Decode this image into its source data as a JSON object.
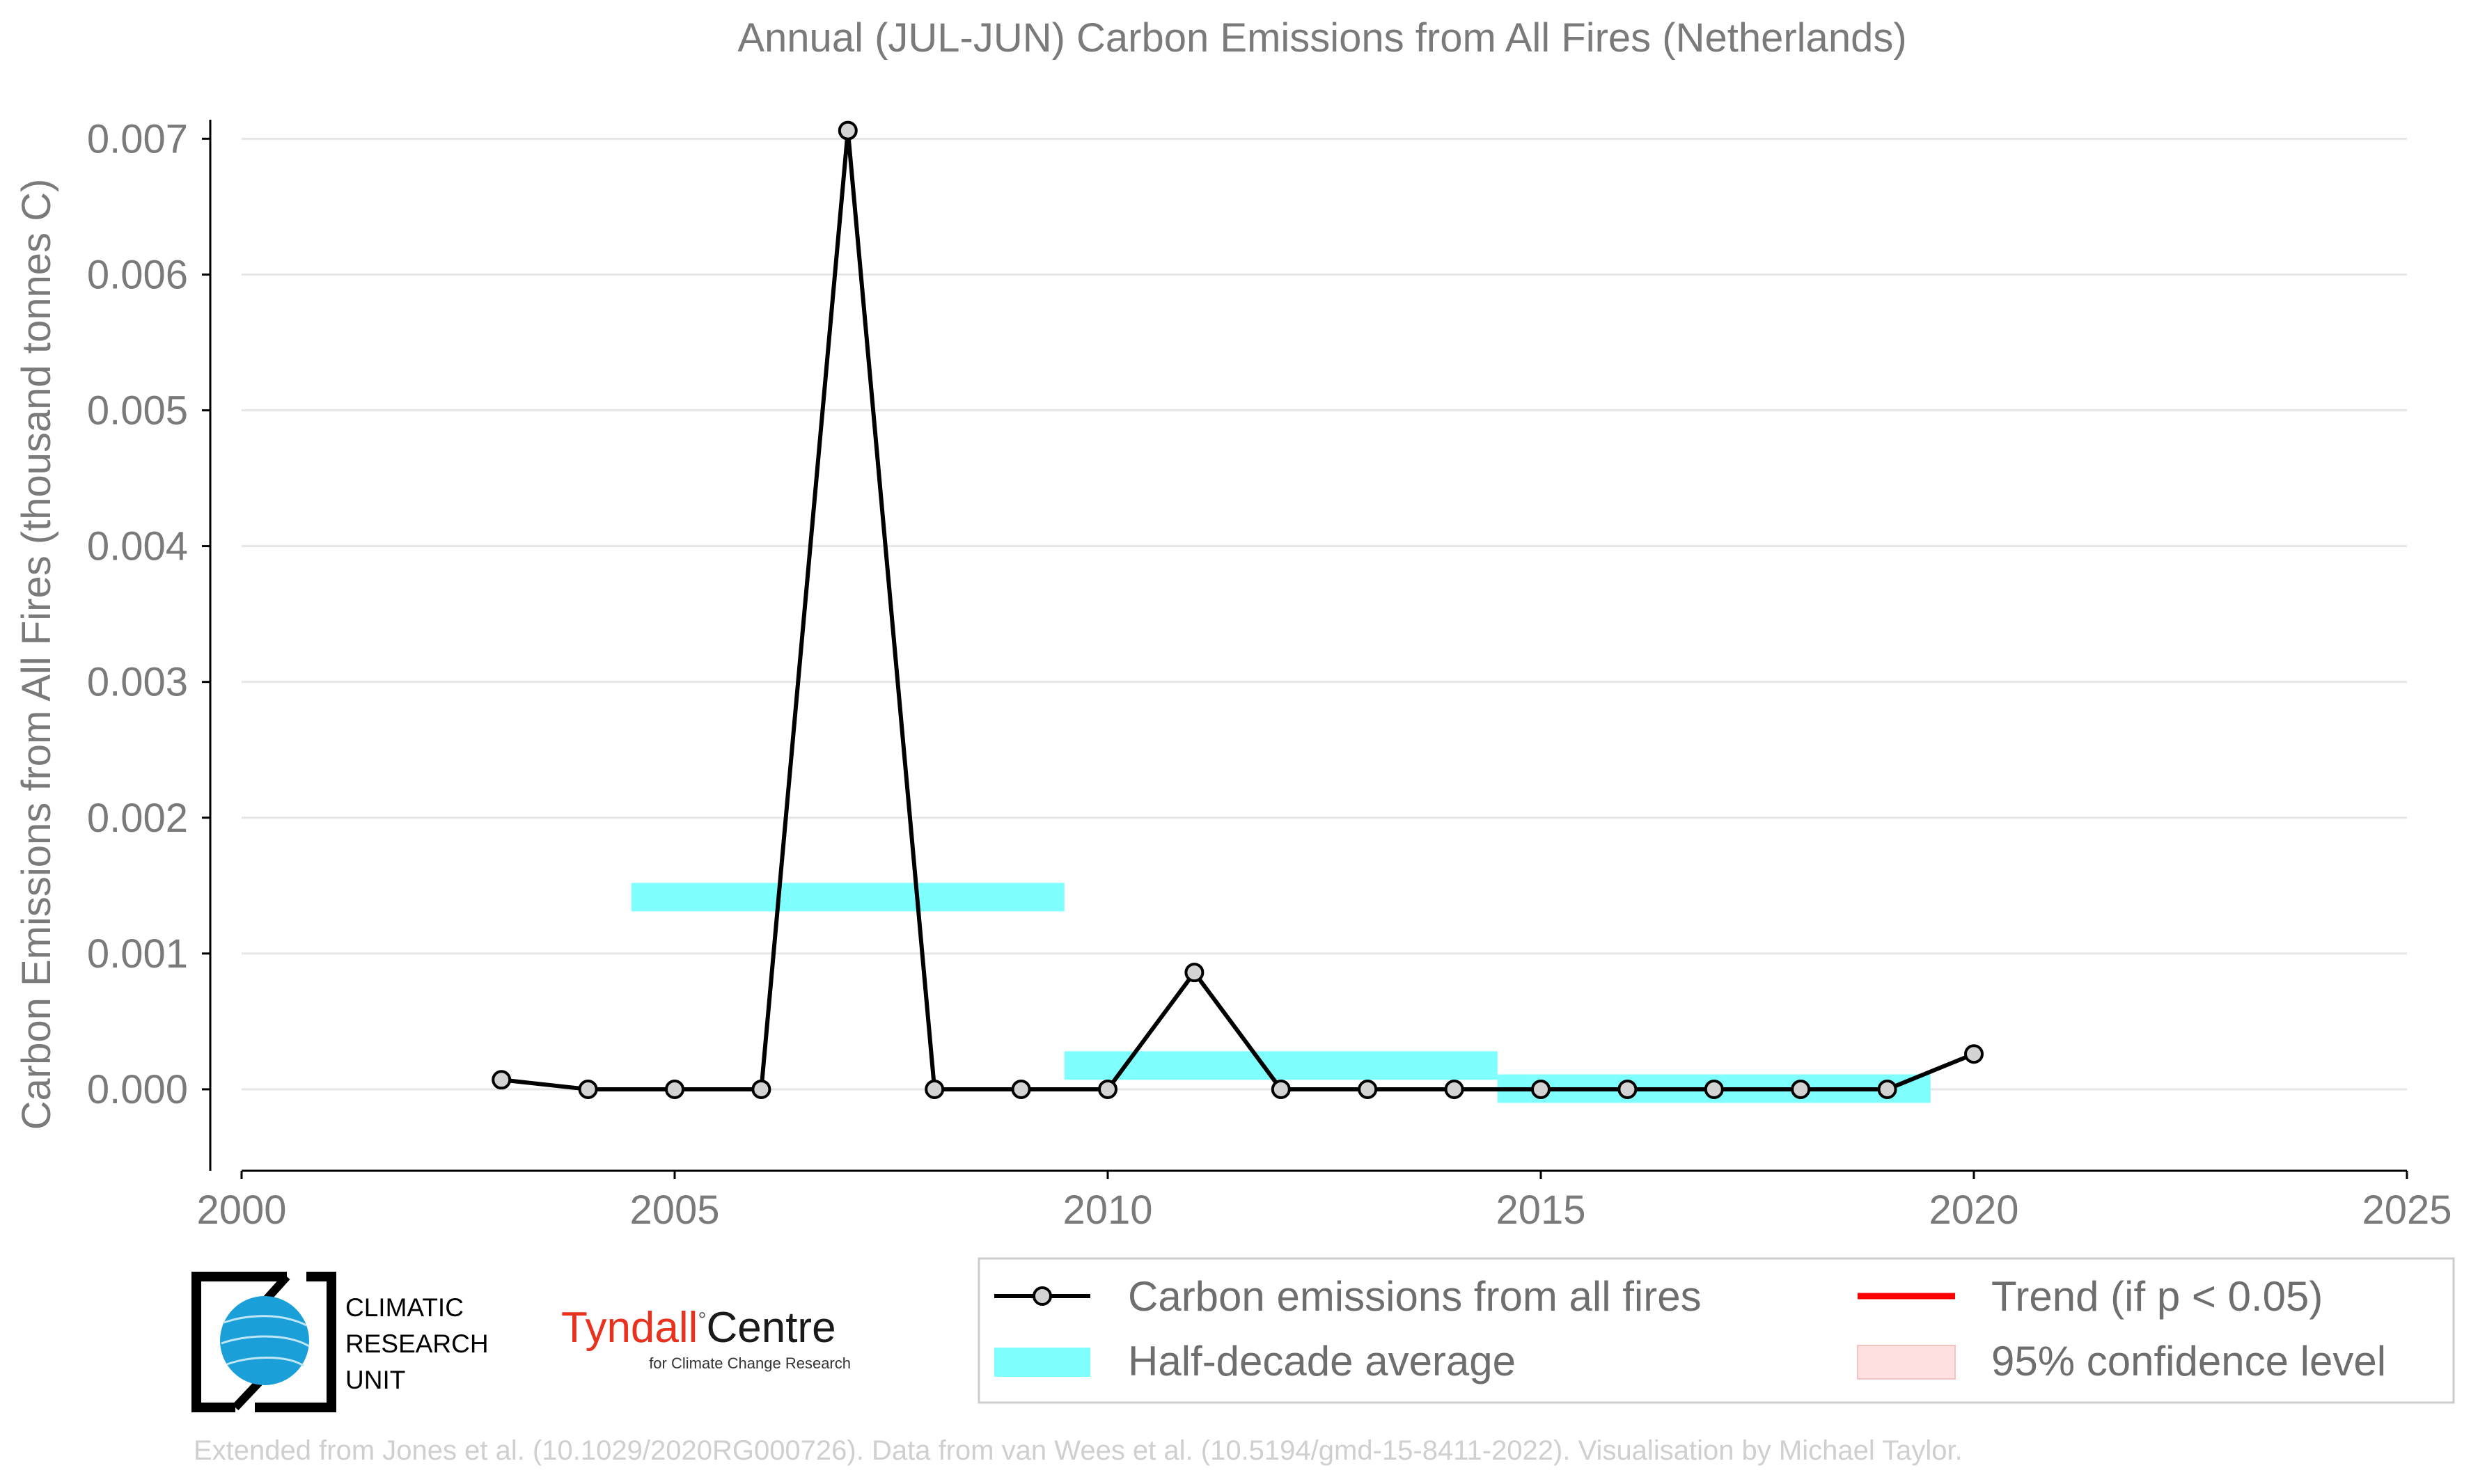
{
  "chart_data": {
    "type": "line",
    "title": "Annual (JUL-JUN) Carbon Emissions from All Fires (Netherlands)",
    "xlabel": "",
    "ylabel": "Carbon Emissions from All Fires (thousand tonnes C)",
    "xlim": [
      2000,
      2025
    ],
    "ylim": [
      -0.0006,
      0.00714
    ],
    "x_ticks": [
      2000,
      2005,
      2010,
      2015,
      2020,
      2025
    ],
    "y_ticks": [
      0.0,
      0.001,
      0.002,
      0.003,
      0.004,
      0.005,
      0.006,
      0.007
    ],
    "y_tick_labels": [
      "0.000",
      "0.001",
      "0.002",
      "0.003",
      "0.004",
      "0.005",
      "0.006",
      "0.007"
    ],
    "grid": "horizontal",
    "legend_position": "bottom-right",
    "series": [
      {
        "name": "Carbon emissions from all fires",
        "color": "#000000",
        "marker_fill": "#d3d3d3",
        "x": [
          2003,
          2004,
          2005,
          2006,
          2007,
          2008,
          2009,
          2010,
          2011,
          2012,
          2013,
          2014,
          2015,
          2016,
          2017,
          2018,
          2019,
          2020
        ],
        "y": [
          7e-05,
          0.0,
          0.0,
          0.0,
          0.00706,
          0.0,
          0.0,
          0.0,
          0.00086,
          0.0,
          0.0,
          0.0,
          0.0,
          0.0,
          0.0,
          0.0,
          0.0,
          0.00026
        ]
      }
    ],
    "half_decade_averages": {
      "name": "Half-decade average",
      "color": "#80ffff",
      "bands": [
        {
          "x_start": 2004.5,
          "x_end": 2009.5,
          "y_low": 0.00131,
          "y_high": 0.00152
        },
        {
          "x_start": 2009.5,
          "x_end": 2014.5,
          "y_low": 7e-05,
          "y_high": 0.00028
        },
        {
          "x_start": 2014.5,
          "x_end": 2019.5,
          "y_low": -0.0001,
          "y_high": 0.00011
        }
      ]
    },
    "legend": [
      {
        "label": "Carbon emissions from all fires",
        "kind": "line-marker",
        "color": "#000000"
      },
      {
        "label": "Trend (if p < 0.05)",
        "kind": "line",
        "color": "#ff0000"
      },
      {
        "label": "Half-decade average",
        "kind": "band",
        "color": "#80ffff"
      },
      {
        "label": "95% confidence level",
        "kind": "band",
        "color": "#ffe0e0"
      }
    ]
  },
  "logos": {
    "cru": {
      "line1": "CLIMATIC",
      "line2": "RESEARCH",
      "line3": "UNIT"
    },
    "tyndall": {
      "main1": "Tyndall",
      "main2": "Centre",
      "sub": "for Climate Change Research",
      "accent": "#e8321e"
    }
  },
  "credit": "Extended from Jones et al. (10.1029/2020RG000726). Data from van Wees et al. (10.5194/gmd-15-8411-2022). Visualisation by Michael Taylor."
}
